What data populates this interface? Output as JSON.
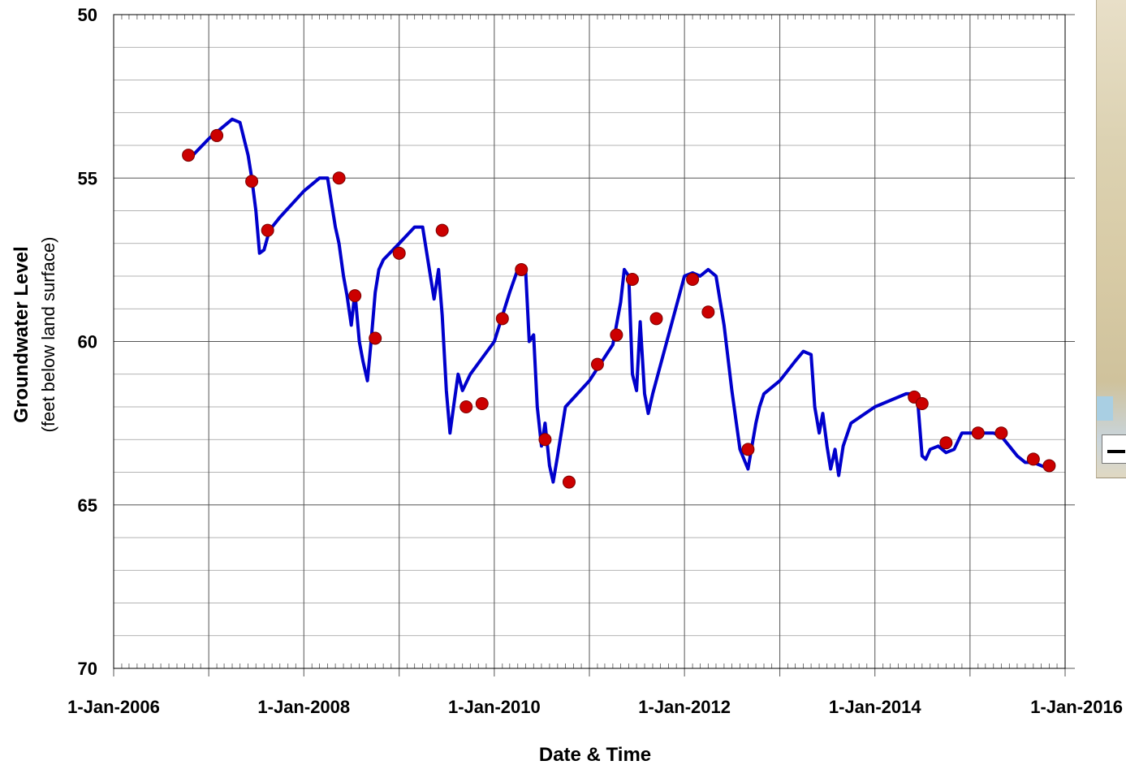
{
  "chart_data": {
    "type": "line",
    "title": "",
    "xlabel": "Date & Time",
    "ylabel": "Groundwater Level",
    "ylabel_sub": "(feet below land surface)",
    "ylim": [
      50,
      70
    ],
    "y_inverted": true,
    "y_ticks": [
      "50",
      "55",
      "60",
      "65",
      "70"
    ],
    "y_tick_values": [
      50,
      55,
      60,
      65,
      70
    ],
    "x_ticks": [
      "1-Jan-2006",
      "1-Jan-2008",
      "1-Jan-2010",
      "1-Jan-2012",
      "1-Jan-2014",
      "1-Jan-2016"
    ],
    "x_tick_values": [
      "2006-01-01",
      "2008-01-01",
      "2010-01-01",
      "2012-01-01",
      "2014-01-01",
      "2016-01-01"
    ],
    "xlim": [
      "2006-01-01",
      "2016-01-01"
    ],
    "grid": true,
    "line_color": "#0000cc",
    "marker_color": "#cc0000",
    "series": [
      {
        "kind": "continuous",
        "x": [
          "2006-11-01",
          "2007-01-01",
          "2007-04-01",
          "2007-05-01",
          "2007-06-01",
          "2007-06-15",
          "2007-07-01",
          "2007-07-15",
          "2007-08-01",
          "2007-08-15",
          "2007-09-01",
          "2007-10-01",
          "2008-01-01",
          "2008-03-01",
          "2008-04-01",
          "2008-05-01",
          "2008-05-15",
          "2008-06-01",
          "2008-06-15",
          "2008-07-01",
          "2008-07-15",
          "2008-08-01",
          "2008-08-15",
          "2008-09-01",
          "2008-09-15",
          "2008-10-01",
          "2008-10-15",
          "2008-11-01",
          "2009-01-01",
          "2009-03-01",
          "2009-04-01",
          "2009-05-01",
          "2009-05-15",
          "2009-06-01",
          "2009-06-15",
          "2009-07-01",
          "2009-07-15",
          "2009-08-01",
          "2009-08-15",
          "2009-09-01",
          "2009-10-01",
          "2010-01-01",
          "2010-03-01",
          "2010-04-01",
          "2010-05-01",
          "2010-05-15",
          "2010-06-01",
          "2010-06-15",
          "2010-07-01",
          "2010-07-15",
          "2010-08-01",
          "2010-08-15",
          "2010-09-01",
          "2010-10-01",
          "2011-01-01",
          "2011-04-01",
          "2011-05-01",
          "2011-05-15",
          "2011-06-01",
          "2011-06-15",
          "2011-07-01",
          "2011-07-15",
          "2011-08-01",
          "2011-08-15",
          "2011-09-01",
          "2012-01-01",
          "2012-02-01",
          "2012-03-01",
          "2012-04-01",
          "2012-05-01",
          "2012-06-01",
          "2012-07-01",
          "2012-08-01",
          "2012-09-01",
          "2012-10-01",
          "2012-10-15",
          "2012-11-01",
          "2013-01-01",
          "2013-03-01",
          "2013-04-01",
          "2013-05-01",
          "2013-05-15",
          "2013-06-01",
          "2013-06-15",
          "2013-07-01",
          "2013-07-15",
          "2013-08-01",
          "2013-08-15",
          "2013-09-01",
          "2013-10-01",
          "2014-01-01",
          "2014-05-01",
          "2014-06-01",
          "2014-06-15",
          "2014-07-01",
          "2014-07-15",
          "2014-08-01",
          "2014-09-01",
          "2014-10-01",
          "2014-11-01",
          "2014-12-01",
          "2015-01-01",
          "2015-04-01",
          "2015-05-01",
          "2015-06-01",
          "2015-07-01",
          "2015-08-01",
          "2015-09-01",
          "2015-10-01",
          "2015-11-01"
        ],
        "y": [
          54.3,
          53.8,
          53.2,
          53.3,
          54.3,
          55.0,
          56.0,
          57.3,
          57.2,
          56.8,
          56.5,
          56.2,
          55.4,
          55.0,
          55.0,
          56.5,
          57.0,
          58.0,
          58.6,
          59.5,
          58.5,
          60.0,
          60.6,
          61.2,
          60.0,
          58.5,
          57.8,
          57.5,
          57.0,
          56.5,
          56.5,
          58.0,
          58.7,
          57.8,
          59.2,
          61.5,
          62.8,
          61.8,
          61.0,
          61.5,
          61.0,
          60.0,
          58.5,
          57.8,
          57.8,
          60.0,
          59.8,
          62.0,
          63.2,
          62.5,
          63.8,
          64.3,
          63.5,
          62.0,
          61.2,
          60.1,
          58.8,
          57.8,
          58.0,
          61.0,
          61.5,
          59.4,
          61.6,
          62.2,
          61.6,
          58.0,
          57.9,
          58.0,
          57.8,
          58.0,
          59.5,
          61.5,
          63.3,
          63.9,
          62.5,
          62.0,
          61.6,
          61.2,
          60.6,
          60.3,
          60.4,
          62.0,
          62.8,
          62.2,
          63.2,
          63.9,
          63.3,
          64.1,
          63.2,
          62.5,
          62.0,
          61.6,
          61.6,
          61.9,
          63.5,
          63.6,
          63.3,
          63.2,
          63.4,
          63.3,
          62.8,
          62.8,
          62.8,
          62.9,
          63.2,
          63.5,
          63.7,
          63.7,
          63.8,
          63.9
        ]
      },
      {
        "kind": "points",
        "x": [
          "2006-10-15",
          "2007-02-01",
          "2007-06-15",
          "2007-08-15",
          "2008-05-15",
          "2008-07-15",
          "2008-10-01",
          "2009-01-01",
          "2009-06-15",
          "2009-09-15",
          "2009-11-15",
          "2010-02-01",
          "2010-04-15",
          "2010-07-15",
          "2010-10-15",
          "2011-02-01",
          "2011-04-15",
          "2011-06-15",
          "2011-09-15",
          "2012-02-01",
          "2012-04-01",
          "2012-09-01",
          "2014-06-01",
          "2014-07-01",
          "2014-10-01",
          "2015-02-01",
          "2015-05-01",
          "2015-09-01",
          "2015-11-01"
        ],
        "y": [
          54.3,
          53.7,
          55.1,
          56.6,
          55.0,
          58.6,
          59.9,
          57.3,
          56.6,
          62.0,
          61.9,
          59.3,
          57.8,
          63.0,
          64.3,
          60.7,
          59.8,
          58.1,
          59.3,
          58.1,
          59.1,
          63.3,
          61.7,
          61.9,
          63.1,
          62.8,
          62.8,
          63.6,
          63.8
        ]
      }
    ]
  }
}
